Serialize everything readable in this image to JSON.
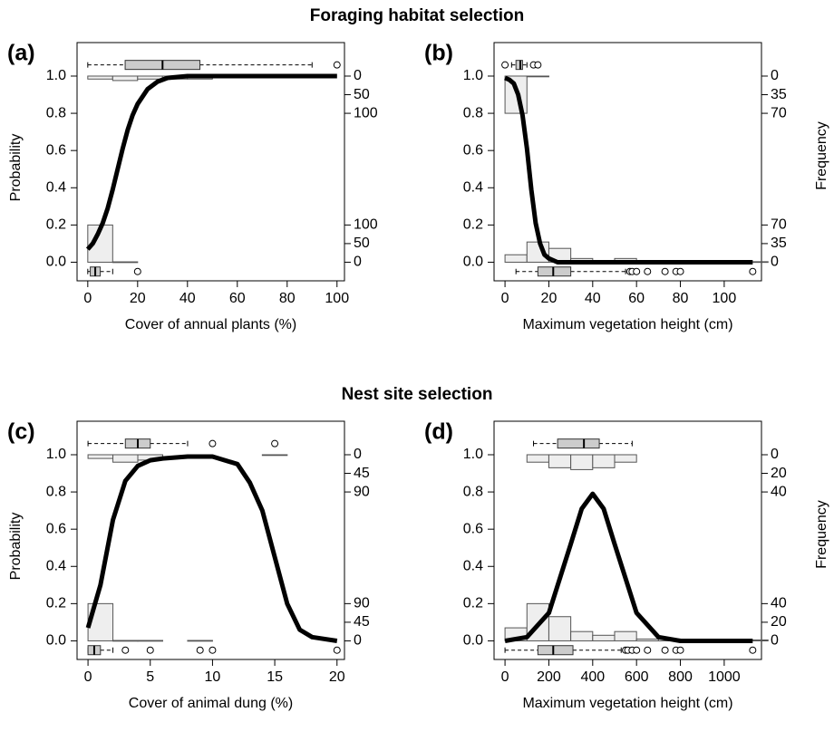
{
  "sections": [
    "Foraging habitat selection",
    "Nest site selection"
  ],
  "chart_data": [
    {
      "type": "line",
      "panel": "(a)",
      "xlabel": "Cover of annual plants (%)",
      "ylabel": "Probability",
      "xlim": [
        -4.3,
        103
      ],
      "ylim": [
        -0.1,
        1.18
      ],
      "xticks": [
        0,
        20,
        40,
        60,
        80,
        100
      ],
      "yticks": [
        {
          "value": 0,
          "label": "0.0"
        },
        0.2,
        0.4,
        0.6,
        0.8,
        {
          "value": 1,
          "label": "1.0"
        }
      ],
      "y2lim": [
        -50,
        590
      ],
      "y2ticks": [
        0,
        50,
        100
      ],
      "y3lim": [
        550,
        -90
      ],
      "y3ticks": [
        0,
        50,
        100
      ],
      "series": [
        {
          "color": "#000000",
          "x": [
            0,
            2,
            4,
            6,
            8,
            10,
            12,
            14,
            16,
            18,
            20,
            24,
            28,
            32,
            40,
            60,
            80,
            100
          ],
          "values": [
            0.07,
            0.1,
            0.15,
            0.21,
            0.29,
            0.39,
            0.5,
            0.61,
            0.71,
            0.79,
            0.85,
            0.93,
            0.97,
            0.99,
            1.0,
            1.0,
            1.0,
            1.0
          ]
        }
      ],
      "histograms": [
        {
          "position": "top",
          "bins": [
            0,
            10,
            20,
            30,
            40,
            50
          ],
          "counts": [
            8,
            12,
            8,
            8,
            8
          ]
        },
        {
          "position": "bottom",
          "bins": [
            0,
            10,
            20
          ],
          "counts": [
            100,
            1
          ]
        }
      ],
      "boxplots": [
        {
          "position": "top",
          "whiskers": [
            0,
            90
          ],
          "box": [
            15,
            45
          ],
          "median": 30,
          "outliers": [
            100
          ]
        },
        {
          "position": "bottom",
          "whiskers": [
            0,
            10
          ],
          "box": [
            1,
            5
          ],
          "median": 3,
          "outliers": [
            20
          ]
        }
      ]
    },
    {
      "type": "line",
      "panel": "(b)",
      "xlabel": "Maximum vegetation height (cm)",
      "y2label": "Frequency",
      "xlim": [
        -5,
        117
      ],
      "ylim": [
        -0.1,
        1.18
      ],
      "xticks": [
        0,
        20,
        40,
        60,
        80,
        100
      ],
      "yticks": [
        {
          "value": 0,
          "label": "0.0"
        },
        0.2,
        0.4,
        0.6,
        0.8,
        {
          "value": 1,
          "label": "1.0"
        }
      ],
      "y2lim": [
        -35,
        413
      ],
      "y2ticks": [
        0,
        35,
        70
      ],
      "y3lim": [
        385,
        -63
      ],
      "y3ticks": [
        0,
        35,
        70
      ],
      "series": [
        {
          "color": "#000000",
          "x": [
            0,
            2,
            4,
            6,
            8,
            10,
            12,
            14,
            16,
            18,
            20,
            24,
            30,
            50,
            80,
            113
          ],
          "values": [
            0.99,
            0.98,
            0.96,
            0.9,
            0.79,
            0.61,
            0.39,
            0.21,
            0.1,
            0.04,
            0.02,
            0.0,
            0.0,
            0.0,
            0.0,
            0.0
          ]
        }
      ],
      "histograms": [
        {
          "position": "top",
          "bins": [
            0,
            10,
            20
          ],
          "counts": [
            70,
            1
          ]
        },
        {
          "position": "bottom",
          "bins": [
            0,
            10,
            20,
            30,
            40,
            50,
            60,
            70,
            80,
            90,
            100,
            110,
            120
          ],
          "counts": [
            14,
            38,
            26,
            7,
            2,
            7,
            1,
            1,
            1,
            1,
            1,
            1
          ]
        }
      ],
      "boxplots": [
        {
          "position": "top",
          "whiskers": [
            3,
            10
          ],
          "box": [
            5,
            8
          ],
          "median": 7,
          "outliers": [
            0,
            13,
            15
          ]
        },
        {
          "position": "bottom",
          "whiskers": [
            5,
            55
          ],
          "box": [
            15,
            30
          ],
          "median": 22,
          "outliers": [
            57,
            58,
            60,
            65,
            73,
            78,
            80,
            113
          ]
        }
      ]
    },
    {
      "type": "line",
      "panel": "(c)",
      "xlabel": "Cover of animal  dung (%)",
      "ylabel": "Probability",
      "xlim": [
        -0.88,
        20.6
      ],
      "ylim": [
        -0.1,
        1.18
      ],
      "xticks": [
        0,
        5,
        10,
        15,
        20
      ],
      "yticks": [
        {
          "value": 0,
          "label": "0.0"
        },
        0.2,
        0.4,
        0.6,
        0.8,
        {
          "value": 1,
          "label": "1.0"
        }
      ],
      "y2lim": [
        -45,
        531
      ],
      "y2ticks": [
        0,
        45,
        90
      ],
      "y3lim": [
        495,
        -81
      ],
      "y3ticks": [
        0,
        45,
        90
      ],
      "series": [
        {
          "color": "#000000",
          "x": [
            0,
            1,
            2,
            3,
            4,
            5,
            6,
            8,
            10,
            12,
            13,
            14,
            15,
            16,
            17,
            18,
            20
          ],
          "values": [
            0.07,
            0.3,
            0.65,
            0.86,
            0.94,
            0.97,
            0.98,
            0.99,
            0.99,
            0.95,
            0.85,
            0.7,
            0.45,
            0.2,
            0.06,
            0.02,
            0.0
          ]
        }
      ],
      "histograms": [
        {
          "position": "top",
          "bins": [
            0,
            2,
            4,
            6,
            8,
            10,
            12,
            14,
            16,
            18,
            20
          ],
          "counts": [
            9,
            18,
            13,
            0,
            0,
            0,
            0,
            1,
            0,
            0
          ]
        },
        {
          "position": "bottom",
          "bins": [
            0,
            2,
            4,
            6,
            8,
            10,
            12,
            14,
            16,
            18,
            20
          ],
          "counts": [
            90,
            1,
            1,
            0,
            1,
            0,
            0,
            0,
            0,
            0
          ]
        }
      ],
      "boxplots": [
        {
          "position": "top",
          "whiskers": [
            0,
            8
          ],
          "box": [
            3,
            5
          ],
          "median": 4,
          "outliers": [
            10,
            15
          ]
        },
        {
          "position": "bottom",
          "whiskers": [
            0,
            2
          ],
          "box": [
            0,
            1
          ],
          "median": 0.5,
          "outliers": [
            3,
            5,
            9,
            10,
            20
          ]
        }
      ]
    },
    {
      "type": "line",
      "panel": "(d)",
      "xlabel": "Maximum vegetation height (cm)",
      "y2label": "Frequency",
      "xlim": [
        -50,
        1170
      ],
      "ylim": [
        -0.1,
        1.18
      ],
      "xticks": [
        0,
        200,
        400,
        600,
        800,
        1000
      ],
      "yticks": [
        {
          "value": 0,
          "label": "0.0"
        },
        0.2,
        0.4,
        0.6,
        0.8,
        {
          "value": 1,
          "label": "1.0"
        }
      ],
      "y2lim": [
        -20,
        236
      ],
      "y2ticks": [
        0,
        20,
        40
      ],
      "y3lim": [
        220,
        -36
      ],
      "y3ticks": [
        0,
        20,
        40
      ],
      "series": [
        {
          "color": "#000000",
          "x": [
            0,
            100,
            200,
            300,
            350,
            400,
            450,
            500,
            600,
            700,
            800,
            1000,
            1130
          ],
          "values": [
            0.0,
            0.02,
            0.15,
            0.52,
            0.71,
            0.79,
            0.71,
            0.52,
            0.15,
            0.02,
            0.0,
            0.0,
            0.0
          ]
        }
      ],
      "histograms": [
        {
          "position": "top",
          "bins": [
            100,
            200,
            300,
            400,
            500,
            600
          ],
          "counts": [
            8,
            14,
            16,
            14,
            8
          ]
        },
        {
          "position": "bottom",
          "bins": [
            0,
            100,
            200,
            300,
            400,
            500,
            600,
            700,
            800,
            900,
            1000,
            1100,
            1200
          ],
          "counts": [
            14,
            40,
            26,
            10,
            6,
            10,
            2,
            2,
            0,
            0,
            0,
            1
          ]
        }
      ],
      "boxplots": [
        {
          "position": "top",
          "whiskers": [
            130,
            580
          ],
          "box": [
            240,
            430
          ],
          "median": 360,
          "outliers": []
        },
        {
          "position": "bottom",
          "whiskers": [
            0,
            530
          ],
          "box": [
            150,
            310
          ],
          "median": 220,
          "outliers": [
            550,
            560,
            580,
            600,
            650,
            730,
            780,
            800,
            1130
          ]
        }
      ]
    }
  ]
}
